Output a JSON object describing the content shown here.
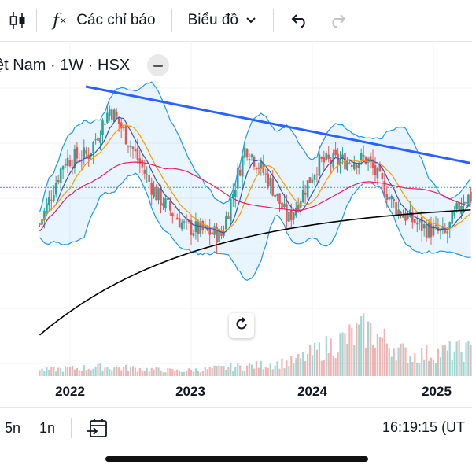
{
  "toolbar": {
    "indicators_label": "Các chỉ báo",
    "chart_type_label": "Biểu đồ",
    "icons": {
      "bars": "candlestick-icon",
      "fx": "fx-indicator-icon",
      "dropdown": "chevron-down-icon",
      "undo": "undo-icon",
      "redo": "redo-icon"
    }
  },
  "symbol": {
    "title": "ệt Nam · 1W · HSX"
  },
  "bottom": {
    "ranges": [
      "5n",
      "1n"
    ],
    "time": "16:19:15 (UT"
  },
  "colors": {
    "up": "#26a69a",
    "down": "#ef5350",
    "trendline": "#2962ff",
    "bb": "#2196f3",
    "bb_fill": "rgba(33,150,243,0.10)",
    "ma_orange": "#ff9800",
    "ma_blue": "#3f51b5",
    "ma_pink": "#e91e63",
    "ma_black": "#000000",
    "hline": "#26a69a"
  },
  "chart_data": {
    "type": "candlestick",
    "xlabel": "",
    "ylabel": "",
    "x_ticks": [
      "2022",
      "2023",
      "2024",
      "2025"
    ],
    "price_profile": [
      {
        "x": 2021.75,
        "close": 0.35
      },
      {
        "x": 2021.95,
        "close": 0.65
      },
      {
        "x": 2022.15,
        "close": 0.68
      },
      {
        "x": 2022.33,
        "close": 0.9
      },
      {
        "x": 2022.45,
        "close": 0.78
      },
      {
        "x": 2022.7,
        "close": 0.5
      },
      {
        "x": 2022.95,
        "close": 0.34
      },
      {
        "x": 2023.25,
        "close": 0.3
      },
      {
        "x": 2023.45,
        "close": 0.72
      },
      {
        "x": 2023.65,
        "close": 0.55
      },
      {
        "x": 2023.8,
        "close": 0.37
      },
      {
        "x": 2024.05,
        "close": 0.64
      },
      {
        "x": 2024.45,
        "close": 0.66
      },
      {
        "x": 2024.7,
        "close": 0.42
      },
      {
        "x": 2024.9,
        "close": 0.34
      },
      {
        "x": 2025.1,
        "close": 0.3
      },
      {
        "x": 2025.25,
        "close": 0.48
      }
    ],
    "trendline": [
      {
        "x": 2022.13,
        "y": 1.0
      },
      {
        "x": 2025.3,
        "y": 0.64
      }
    ],
    "volume_profile": [
      {
        "x": 2021.75,
        "v": 0.12
      },
      {
        "x": 2022.3,
        "v": 0.18
      },
      {
        "x": 2022.9,
        "v": 0.1
      },
      {
        "x": 2023.5,
        "v": 0.2
      },
      {
        "x": 2023.85,
        "v": 0.28
      },
      {
        "x": 2024.1,
        "v": 0.55
      },
      {
        "x": 2024.45,
        "v": 0.9
      },
      {
        "x": 2024.8,
        "v": 0.4
      },
      {
        "x": 2025.0,
        "v": 0.45
      },
      {
        "x": 2025.2,
        "v": 0.5
      }
    ]
  }
}
